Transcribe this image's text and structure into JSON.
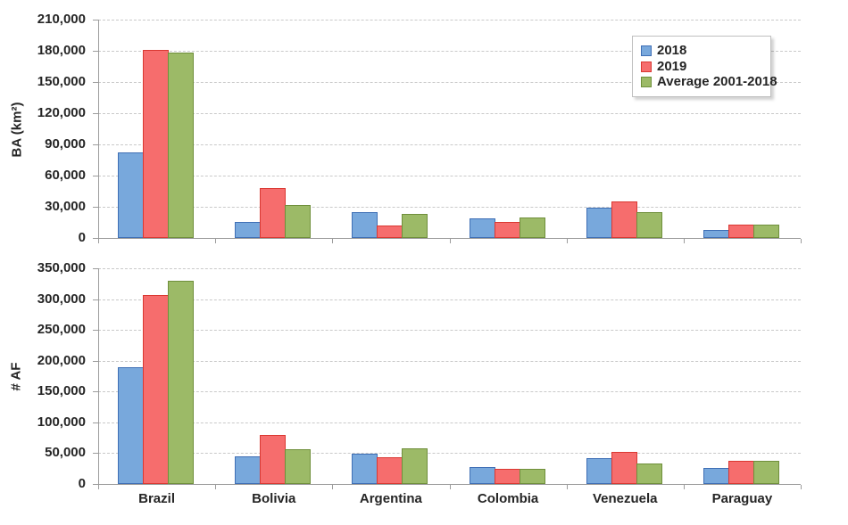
{
  "figure": {
    "background": "#ffffff"
  },
  "colors": {
    "series": [
      {
        "name": "2018",
        "fill": "#78a8dc",
        "border": "#3f6fb5"
      },
      {
        "name": "2019",
        "fill": "#f66d6d",
        "border": "#da3832"
      },
      {
        "name": "Average 2001-2018",
        "fill": "#9cba67",
        "border": "#6f8f3b"
      }
    ],
    "grid": "#c9c9c9",
    "axis": "#9c9c9c",
    "text": "#252525"
  },
  "legend": {
    "position": "top-right",
    "items": [
      {
        "label": "2018"
      },
      {
        "label": "2019"
      },
      {
        "label": "Average 2001-2018"
      }
    ]
  },
  "chart_data": [
    {
      "type": "bar",
      "title": "",
      "ylabel": "BA (km²)",
      "xlabel": "",
      "categories": [
        "Brazil",
        "Bolivia",
        "Argentina",
        "Colombia",
        "Venezuela",
        "Paraguay"
      ],
      "series": [
        {
          "name": "2018",
          "values": [
            82000,
            15500,
            24500,
            19000,
            29000,
            8000
          ]
        },
        {
          "name": "2019",
          "values": [
            181000,
            48000,
            12000,
            15000,
            35000,
            13000
          ]
        },
        {
          "name": "Average 2001-2018",
          "values": [
            178000,
            31500,
            23000,
            19500,
            25000,
            13000
          ]
        }
      ],
      "ylim": [
        0,
        210000
      ],
      "ytick_step": 30000,
      "ytick_labels": [
        "210,000",
        "180,000",
        "150,000",
        "120,000",
        "90,000",
        "60,000",
        "30,000",
        "0"
      ],
      "grid": "horizontal-dashed",
      "show_x_labels": false
    },
    {
      "type": "bar",
      "title": "",
      "ylabel": "# AF",
      "xlabel": "",
      "categories": [
        "Brazil",
        "Bolivia",
        "Argentina",
        "Colombia",
        "Venezuela",
        "Paraguay"
      ],
      "series": [
        {
          "name": "2018",
          "values": [
            190000,
            45000,
            49000,
            28000,
            42000,
            26000
          ]
        },
        {
          "name": "2019",
          "values": [
            306000,
            80000,
            43000,
            25000,
            52000,
            37000
          ]
        },
        {
          "name": "Average 2001-2018",
          "values": [
            330000,
            57000,
            58000,
            24000,
            33000,
            37000
          ]
        }
      ],
      "ylim": [
        0,
        350000
      ],
      "ytick_step": 50000,
      "ytick_labels": [
        "350,000",
        "300,000",
        "250,000",
        "200,000",
        "150,000",
        "100,000",
        "50,000",
        "0"
      ],
      "grid": "horizontal-dashed",
      "show_x_labels": true
    }
  ]
}
